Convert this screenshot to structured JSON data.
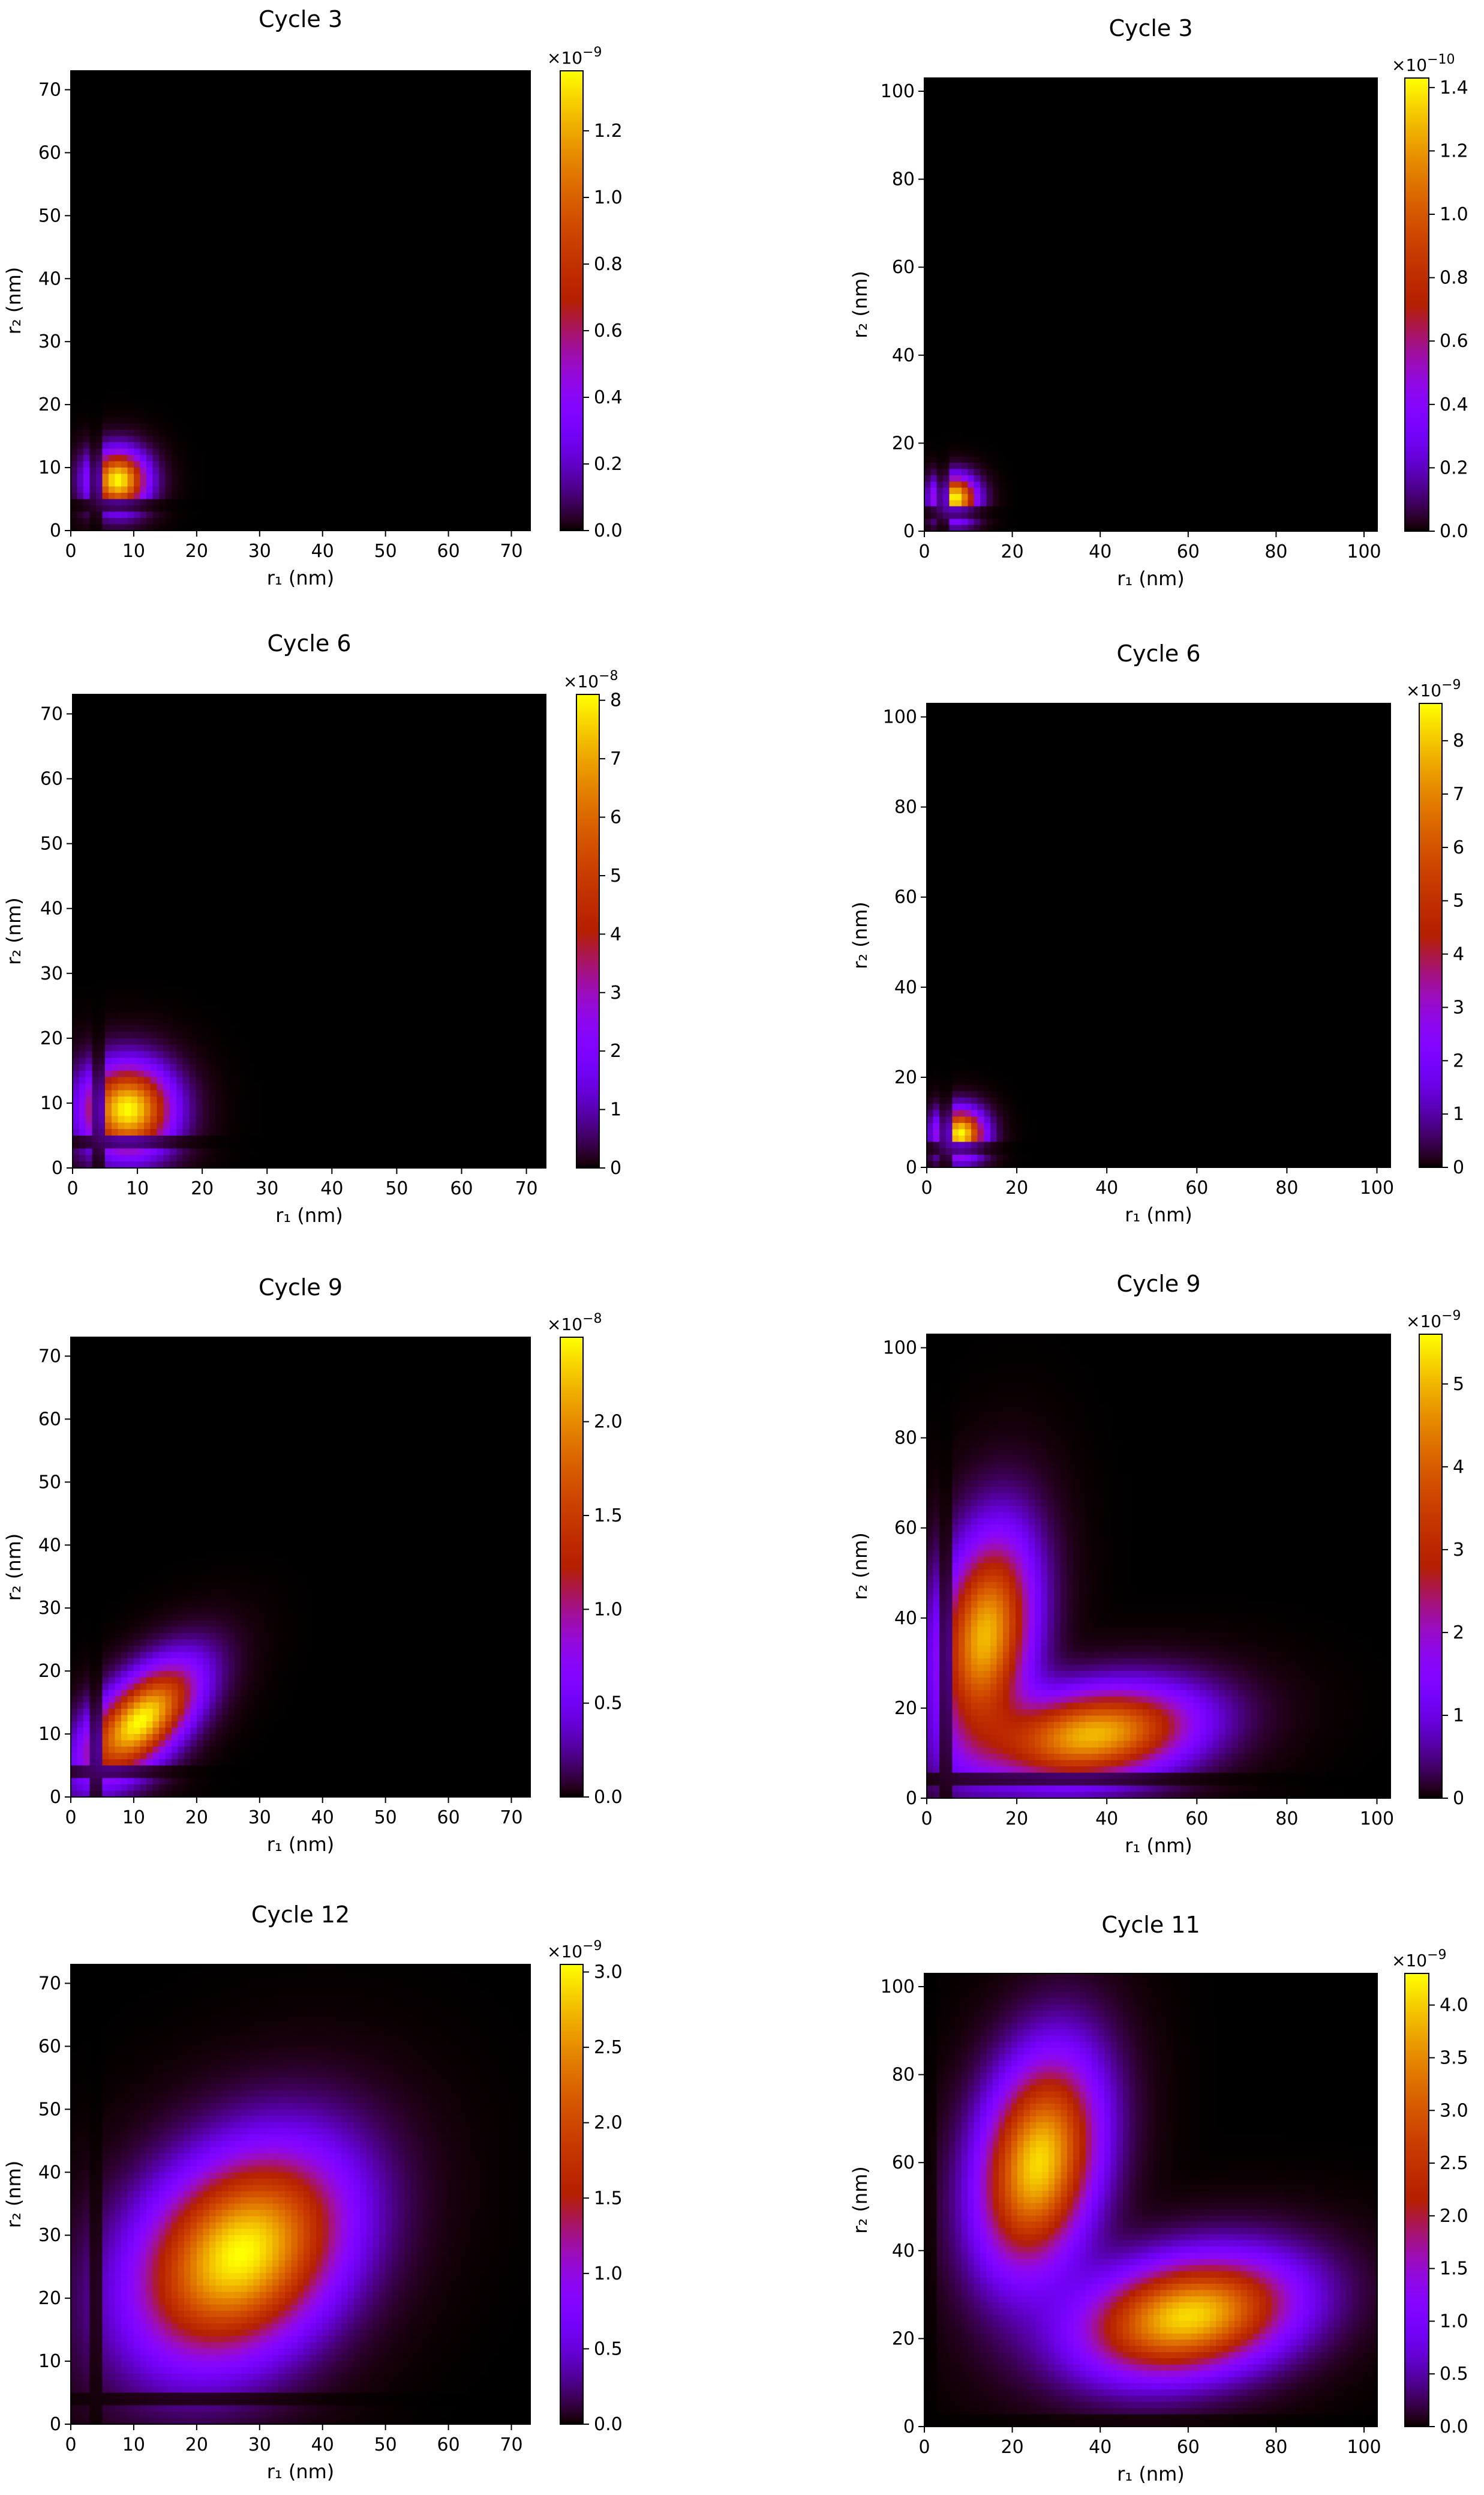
{
  "chart_data": [
    {
      "type": "heatmap",
      "title": "Cycle 3",
      "xlabel": "r₁ (nm)",
      "ylabel": "r₂ (nm)",
      "xlim": [
        0,
        73
      ],
      "ylim": [
        0,
        73
      ],
      "xticks": [
        0,
        10,
        20,
        30,
        40,
        50,
        60,
        70
      ],
      "yticks": [
        0,
        10,
        20,
        30,
        40,
        50,
        60,
        70
      ],
      "colorbar": {
        "multiplier_base": "×10",
        "multiplier_exp": "−9",
        "max": 1.38,
        "ticks": [
          "0.0",
          "0.2",
          "0.4",
          "0.6",
          "0.8",
          "1.0",
          "1.2"
        ],
        "tick_values": [
          0,
          0.2,
          0.4,
          0.6,
          0.8,
          1.0,
          1.2
        ]
      },
      "peaks": [
        {
          "x": 7.5,
          "y": 8,
          "sx": 3,
          "sy": 3,
          "rho": 0,
          "amp": 1.0
        }
      ],
      "gap": [
        3.5,
        5
      ],
      "spread": 0.08,
      "grid": false
    },
    {
      "type": "heatmap",
      "title": "Cycle 3",
      "xlabel": "r₁ (nm)",
      "ylabel": "r₂ (nm)",
      "xlim": [
        0,
        103
      ],
      "ylim": [
        0,
        103
      ],
      "xticks": [
        0,
        20,
        40,
        60,
        80,
        100
      ],
      "yticks": [
        0,
        20,
        40,
        60,
        80,
        100
      ],
      "colorbar": {
        "multiplier_base": "×10",
        "multiplier_exp": "−10",
        "max": 1.43,
        "ticks": [
          "0.0",
          "0.2",
          "0.4",
          "0.6",
          "0.8",
          "1.0",
          "1.2",
          "1.4"
        ],
        "tick_values": [
          0,
          0.2,
          0.4,
          0.6,
          0.8,
          1.0,
          1.2,
          1.4
        ]
      },
      "peaks": [
        {
          "x": 7,
          "y": 7.5,
          "sx": 3.2,
          "sy": 3.2,
          "rho": 0,
          "amp": 1.0
        }
      ],
      "gap": [
        3.5,
        5
      ],
      "spread": 0.08,
      "grid": false
    },
    {
      "type": "heatmap",
      "title": "Cycle 6",
      "xlabel": "r₁ (nm)",
      "ylabel": "r₂ (nm)",
      "xlim": [
        0,
        73
      ],
      "ylim": [
        0,
        73
      ],
      "xticks": [
        0,
        10,
        20,
        30,
        40,
        50,
        60,
        70
      ],
      "yticks": [
        0,
        10,
        20,
        30,
        40,
        50,
        60,
        70
      ],
      "colorbar": {
        "multiplier_base": "×10",
        "multiplier_exp": "−8",
        "max": 8.1,
        "ticks": [
          "0",
          "1",
          "2",
          "3",
          "4",
          "5",
          "6",
          "7",
          "8"
        ],
        "tick_values": [
          0,
          1,
          2,
          3,
          4,
          5,
          6,
          7,
          8
        ]
      },
      "peaks": [
        {
          "x": 8.5,
          "y": 9,
          "sx": 4.5,
          "sy": 4.5,
          "rho": 0,
          "amp": 1.0
        }
      ],
      "gap": [
        3.5,
        5
      ],
      "spread": 0.18,
      "grid": false
    },
    {
      "type": "heatmap",
      "title": "Cycle 6",
      "xlabel": "r₁ (nm)",
      "ylabel": "r₂ (nm)",
      "xlim": [
        0,
        103
      ],
      "ylim": [
        0,
        103
      ],
      "xticks": [
        0,
        20,
        40,
        60,
        80,
        100
      ],
      "yticks": [
        0,
        20,
        40,
        60,
        80,
        100
      ],
      "colorbar": {
        "multiplier_base": "×10",
        "multiplier_exp": "−9",
        "max": 8.7,
        "ticks": [
          "0",
          "1",
          "2",
          "3",
          "4",
          "5",
          "6",
          "7",
          "8"
        ],
        "tick_values": [
          0,
          1,
          2,
          3,
          4,
          5,
          6,
          7,
          8
        ]
      },
      "peaks": [
        {
          "x": 7.5,
          "y": 7.5,
          "sx": 3.5,
          "sy": 3.5,
          "rho": 0,
          "amp": 1.0
        }
      ],
      "gap": [
        3.5,
        5
      ],
      "spread": 0.28,
      "grid": false
    },
    {
      "type": "heatmap",
      "title": "Cycle 9",
      "xlabel": "r₁ (nm)",
      "ylabel": "r₂ (nm)",
      "xlim": [
        0,
        73
      ],
      "ylim": [
        0,
        73
      ],
      "xticks": [
        0,
        10,
        20,
        30,
        40,
        50,
        60,
        70
      ],
      "yticks": [
        0,
        10,
        20,
        30,
        40,
        50,
        60,
        70
      ],
      "colorbar": {
        "multiplier_base": "×10",
        "multiplier_exp": "−8",
        "max": 2.45,
        "ticks": [
          "0.0",
          "0.5",
          "1.0",
          "1.5",
          "2.0"
        ],
        "tick_values": [
          0,
          0.5,
          1.0,
          1.5,
          2.0
        ]
      },
      "peaks": [
        {
          "x": 11,
          "y": 12,
          "sx": 6,
          "sy": 6,
          "rho": 0.6,
          "amp": 1.0
        }
      ],
      "gap": [
        3.5,
        5
      ],
      "spread": 0.32,
      "grid": false
    },
    {
      "type": "heatmap",
      "title": "Cycle 9",
      "xlabel": "r₁ (nm)",
      "ylabel": "r₂ (nm)",
      "xlim": [
        0,
        103
      ],
      "ylim": [
        0,
        103
      ],
      "xticks": [
        0,
        20,
        40,
        60,
        80,
        100
      ],
      "yticks": [
        0,
        20,
        40,
        60,
        80,
        100
      ],
      "colorbar": {
        "multiplier_base": "×10",
        "multiplier_exp": "−9",
        "max": 5.6,
        "ticks": [
          "0",
          "1",
          "2",
          "3",
          "4",
          "5"
        ],
        "tick_values": [
          0,
          1,
          2,
          3,
          4,
          5
        ]
      },
      "peaks": [
        {
          "x": 13,
          "y": 36,
          "sx": 7,
          "sy": 15,
          "rho": 0.25,
          "amp": 0.9
        },
        {
          "x": 37,
          "y": 14,
          "sx": 15,
          "sy": 7,
          "rho": 0.25,
          "amp": 0.9
        }
      ],
      "gap": [
        3.5,
        5
      ],
      "spread": 0.3,
      "grid": false
    },
    {
      "type": "heatmap",
      "title": "Cycle 12",
      "xlabel": "r₁ (nm)",
      "ylabel": "r₂ (nm)",
      "xlim": [
        0,
        73
      ],
      "ylim": [
        0,
        73
      ],
      "xticks": [
        0,
        10,
        20,
        30,
        40,
        50,
        60,
        70
      ],
      "yticks": [
        0,
        10,
        20,
        30,
        40,
        50,
        60,
        70
      ],
      "colorbar": {
        "multiplier_base": "×10",
        "multiplier_exp": "−9",
        "max": 3.05,
        "ticks": [
          "0.0",
          "0.5",
          "1.0",
          "1.5",
          "2.0",
          "2.5",
          "3.0"
        ],
        "tick_values": [
          0,
          0.5,
          1.0,
          1.5,
          2.0,
          2.5,
          3.0
        ]
      },
      "peaks": [
        {
          "x": 27,
          "y": 27,
          "sx": 11,
          "sy": 11,
          "rho": 0.3,
          "amp": 1.0
        }
      ],
      "gap": [
        3.5,
        5
      ],
      "spread": 0.35,
      "grid": false
    },
    {
      "type": "heatmap",
      "title": "Cycle 11",
      "xlabel": "r₁ (nm)",
      "ylabel": "r₂ (nm)",
      "xlim": [
        0,
        103
      ],
      "ylim": [
        0,
        103
      ],
      "xticks": [
        0,
        20,
        40,
        60,
        80,
        100
      ],
      "yticks": [
        0,
        20,
        40,
        60,
        80,
        100
      ],
      "colorbar": {
        "multiplier_base": "×10",
        "multiplier_exp": "−9",
        "max": 4.3,
        "ticks": [
          "0.0",
          "0.5",
          "1.0",
          "1.5",
          "2.0",
          "2.5",
          "3.0",
          "3.5",
          "4.0"
        ],
        "tick_values": [
          0,
          0.5,
          1.0,
          1.5,
          2.0,
          2.5,
          3.0,
          3.5,
          4.0
        ]
      },
      "peaks": [
        {
          "x": 26,
          "y": 60,
          "sx": 9,
          "sy": 16,
          "rho": 0.25,
          "amp": 0.95
        },
        {
          "x": 60,
          "y": 25,
          "sx": 16,
          "sy": 9,
          "rho": 0.25,
          "amp": 0.95
        }
      ],
      "gap": [
        0,
        3
      ],
      "spread": 0.4,
      "grid": false
    }
  ]
}
